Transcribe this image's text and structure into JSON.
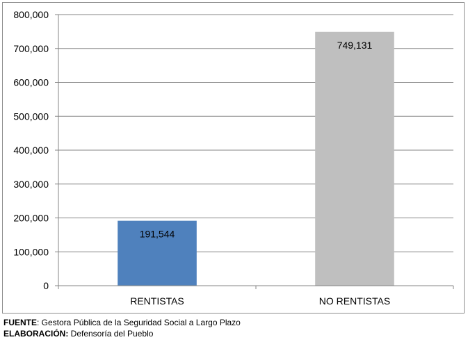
{
  "chart_data": {
    "type": "bar",
    "categories": [
      "RENTISTAS",
      "NO RENTISTAS"
    ],
    "values": [
      191544,
      749131
    ],
    "data_labels": [
      "191,544",
      "749,131"
    ],
    "bar_colors": [
      "#4f81bd",
      "#bfbfbf"
    ],
    "ylim": [
      0,
      800000
    ],
    "yticks": [
      0,
      100000,
      200000,
      300000,
      400000,
      500000,
      600000,
      700000,
      800000
    ],
    "ytick_labels": [
      "0",
      "100,000",
      "200,000",
      "300,000",
      "400,000",
      "500,000",
      "600,000",
      "700,000",
      "800,000"
    ],
    "grid": true,
    "title": "",
    "xlabel": "",
    "ylabel": ""
  },
  "caption": {
    "source_label": "FUENTE",
    "source_text": ": Gestora Pública de la Seguridad Social a Largo Plazo",
    "author_label": "ELABORACIÓN:",
    "author_text": " Defensoría del Pueblo"
  }
}
